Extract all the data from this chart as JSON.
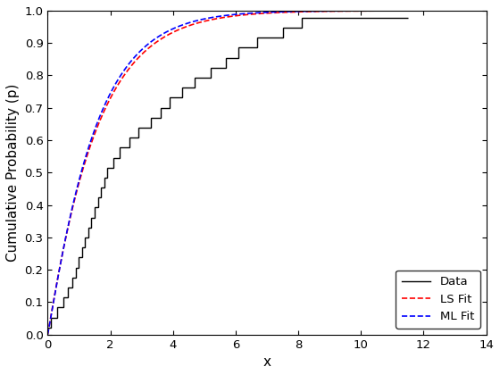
{
  "title": "",
  "xlabel": "x",
  "ylabel": "Cumulative Probability (p)",
  "xlim": [
    0,
    14
  ],
  "ylim": [
    0,
    1
  ],
  "xticks": [
    0,
    2,
    4,
    6,
    8,
    10,
    12,
    14
  ],
  "yticks": [
    0,
    0.1,
    0.2,
    0.3,
    0.4,
    0.5,
    0.6,
    0.7,
    0.8,
    0.9,
    1.0
  ],
  "data_x": [
    0.1,
    0.3,
    0.5,
    0.65,
    0.8,
    0.9,
    1.0,
    1.1,
    1.2,
    1.3,
    1.4,
    1.5,
    1.6,
    1.7,
    1.8,
    1.9,
    2.1,
    2.3,
    2.6,
    2.9,
    3.3,
    3.6,
    3.9,
    4.3,
    4.7,
    5.2,
    5.7,
    6.1,
    6.7,
    7.5,
    8.1,
    11.5
  ],
  "ls_color": "#ff0000",
  "ml_color": "#0000ff",
  "data_color": "#000000",
  "ls_label": "LS Fit",
  "ml_label": "ML Fit",
  "data_label": "Data",
  "ls_shape": 1.05,
  "ls_scale": 1.55,
  "ml_shape": 1.08,
  "ml_scale": 1.5,
  "background_color": "#ffffff",
  "legend_loc": "lower right",
  "fontsize": 11
}
